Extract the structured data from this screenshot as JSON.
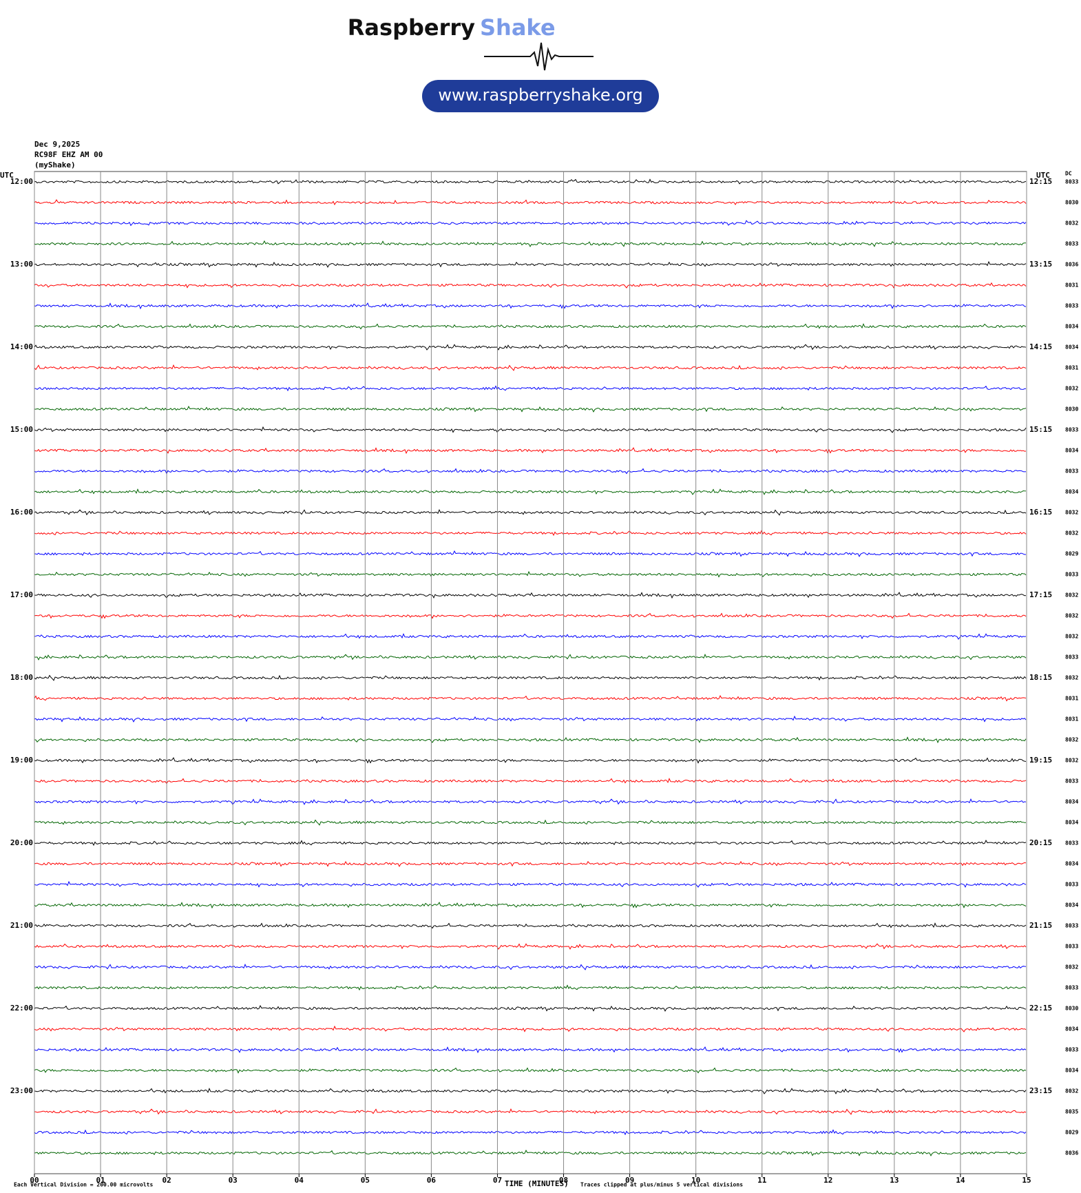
{
  "chart_data": {
    "type": "helicorder",
    "logo_word1": "Raspberry",
    "logo_word2": "Shake",
    "website": "www.raspberryshake.org",
    "info": [
      "Dec 9,2025",
      "RC98F EHZ AM 00",
      "(myShake)"
    ],
    "left_axis_label": "UTC",
    "right_axis_label": "UTC",
    "dc_label": "DC",
    "hour_labels": [
      "12:00",
      "13:00",
      "14:00",
      "15:00",
      "16:00",
      "17:00",
      "18:00",
      "19:00",
      "20:00",
      "21:00",
      "22:00",
      "23:00"
    ],
    "quarter_labels": [
      "12:15",
      "13:15",
      "14:15",
      "15:15",
      "16:15",
      "17:15",
      "18:15",
      "19:15",
      "20:15",
      "21:15",
      "22:15",
      "23:15"
    ],
    "dc_values": [
      8033,
      8030,
      8032,
      8033,
      8036,
      8031,
      8033,
      8034,
      8034,
      8031,
      8032,
      8030,
      8033,
      8034,
      8033,
      8034,
      8032,
      8032,
      8029,
      8033,
      8032,
      8032,
      8032,
      8033,
      8032,
      8031,
      8031,
      8032,
      8032,
      8033,
      8034,
      8034,
      8033,
      8034,
      8033,
      8034,
      8033,
      8033,
      8032,
      8033,
      8030,
      8034,
      8033,
      8034,
      8032,
      8035,
      8029,
      8036
    ],
    "colors": [
      "#000000",
      "#ff0000",
      "#0000ff",
      "#006400"
    ],
    "xlim": [
      0,
      15
    ],
    "xticks": [
      {
        "value": 0,
        "label": "00"
      },
      {
        "value": 1,
        "label": "01"
      },
      {
        "value": 2,
        "label": "02"
      },
      {
        "value": 3,
        "label": "03"
      },
      {
        "value": 4,
        "label": "04"
      },
      {
        "value": 5,
        "label": "05"
      },
      {
        "value": 6,
        "label": "06"
      },
      {
        "value": 7,
        "label": "07"
      },
      {
        "value": 8,
        "label": "08"
      },
      {
        "value": 9,
        "label": "09"
      },
      {
        "value": 10,
        "label": "10"
      },
      {
        "value": 11,
        "label": "11"
      },
      {
        "value": 12,
        "label": "12"
      },
      {
        "value": 13,
        "label": "13"
      },
      {
        "value": 14,
        "label": "14"
      },
      {
        "value": 15,
        "label": "15"
      }
    ],
    "xlabel": "TIME (MINUTES)",
    "footer_left": "Each Vertical Division =  200.00 microvolts",
    "footer_right": "Traces clipped at plus/minus 5 vertical divisions"
  }
}
